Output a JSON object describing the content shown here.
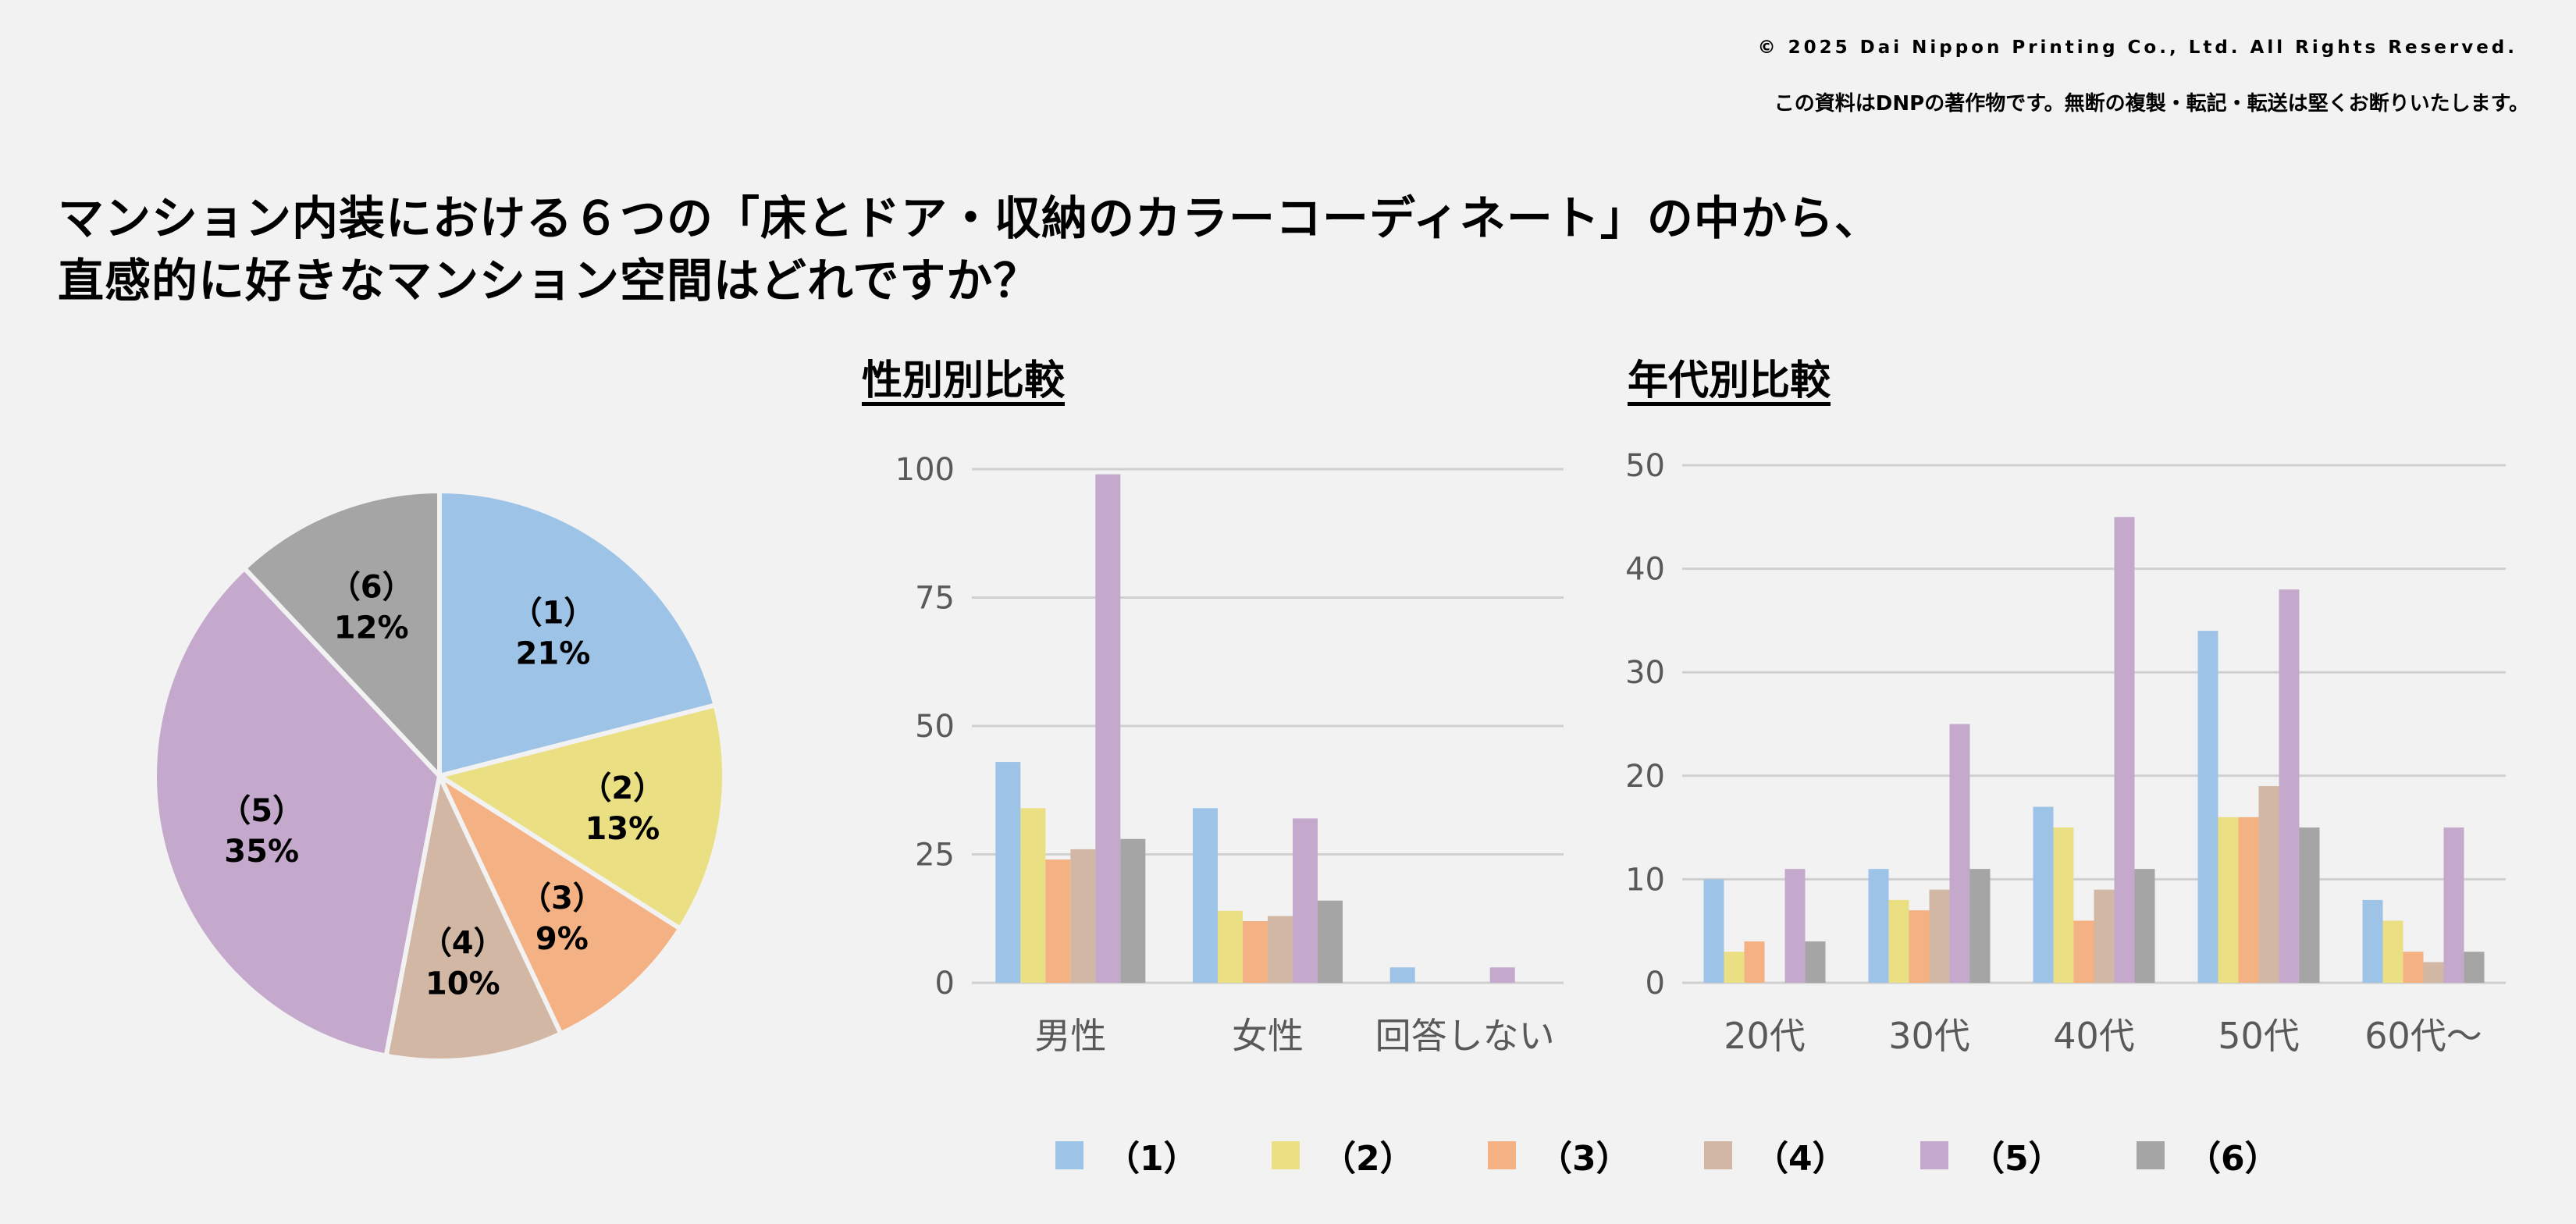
{
  "copyright": "© 2025 Dai Nippon Printing Co., Ltd. All Rights Reserved.",
  "notice": "この資料はDNPの著作物です。無断の複製・転記・転送は堅くお断りいたします。",
  "title": {
    "line1": "マンション内装における６つの「床とドア・収納のカラーコーディネート」の中から、",
    "line2": "直感的に好きなマンション空間はどれですか？"
  },
  "colors": [
    "#9dc3e6",
    "#ebdf84",
    "#f4b183",
    "#d2b8a4",
    "#c4a9cc",
    "#a5a5a5"
  ],
  "legend": [
    "（1）",
    "（2）",
    "（3）",
    "（4）",
    "（5）",
    "（6）"
  ],
  "chart_data": [
    {
      "type": "pie",
      "title": "",
      "labels": [
        "（1）",
        "（2）",
        "（3）",
        "（4）",
        "（5）",
        "（6）"
      ],
      "percent_labels": [
        "21%",
        "13%",
        "9%",
        "10%",
        "35%",
        "12%"
      ],
      "values": [
        21,
        13,
        9,
        10,
        35,
        12
      ]
    },
    {
      "type": "bar",
      "title": "性別別比較",
      "categories": [
        "男性",
        "女性",
        "回答しない"
      ],
      "series": [
        {
          "name": "（1）",
          "values": [
            43,
            34,
            3
          ]
        },
        {
          "name": "（2）",
          "values": [
            34,
            14,
            0
          ]
        },
        {
          "name": "（3）",
          "values": [
            24,
            12,
            0
          ]
        },
        {
          "name": "（4）",
          "values": [
            26,
            13,
            0
          ]
        },
        {
          "name": "（5）",
          "values": [
            99,
            32,
            3
          ]
        },
        {
          "name": "（6）",
          "values": [
            28,
            16,
            0
          ]
        }
      ],
      "ylim": [
        0,
        100
      ],
      "yticks": [
        "0",
        "25",
        "50",
        "75",
        "100"
      ],
      "grid": true
    },
    {
      "type": "bar",
      "title": "年代別比較",
      "categories": [
        "20代",
        "30代",
        "40代",
        "50代",
        "60代〜"
      ],
      "series": [
        {
          "name": "（1）",
          "values": [
            10,
            11,
            17,
            34,
            8
          ]
        },
        {
          "name": "（2）",
          "values": [
            3,
            8,
            15,
            16,
            6
          ]
        },
        {
          "name": "（3）",
          "values": [
            4,
            7,
            6,
            16,
            3
          ]
        },
        {
          "name": "（4）",
          "values": [
            0,
            9,
            9,
            19,
            2
          ]
        },
        {
          "name": "（5）",
          "values": [
            11,
            25,
            45,
            38,
            15
          ]
        },
        {
          "name": "（6）",
          "values": [
            4,
            11,
            11,
            15,
            3
          ]
        }
      ],
      "ylim": [
        0,
        50
      ],
      "yticks": [
        "0",
        "10",
        "20",
        "30",
        "40",
        "50"
      ],
      "grid": true
    }
  ]
}
